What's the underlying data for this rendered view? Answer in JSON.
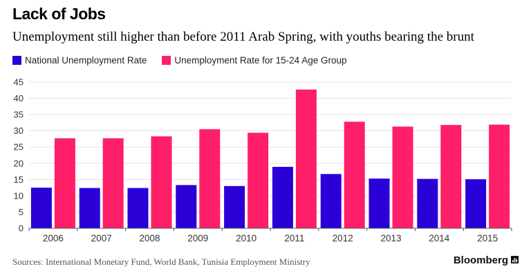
{
  "header": {
    "title": "Lack of Jobs",
    "subtitle": "Unemployment still higher than before 2011 Arab Spring, with youths bearing the brunt"
  },
  "footer": {
    "source": "Sources: International Monetary Fund, World Bank, Tunisia Employment Ministry",
    "brand": "Bloomberg",
    "brand_icon": "bar-chart-icon"
  },
  "colors": {
    "national": "#2a00d6",
    "youth": "#ff1f68",
    "grid": "#e3e3e3",
    "axis": "#555555"
  },
  "chart_data": {
    "type": "bar",
    "title": "Lack of Jobs",
    "subtitle": "Unemployment still higher than before 2011 Arab Spring, with youths bearing the brunt",
    "xlabel": "",
    "ylabel": "",
    "categories": [
      "2006",
      "2007",
      "2008",
      "2009",
      "2010",
      "2011",
      "2012",
      "2013",
      "2014",
      "2015"
    ],
    "series": [
      {
        "name": "National Unemployment Rate",
        "color": "#2a00d6",
        "values": [
          12.5,
          12.4,
          12.4,
          13.3,
          13.0,
          18.9,
          16.7,
          15.3,
          15.2,
          15.1
        ]
      },
      {
        "name": "Unemployment Rate for 15-24 Age Group",
        "color": "#ff1f68",
        "values": [
          27.7,
          27.7,
          28.3,
          30.5,
          29.4,
          42.7,
          32.8,
          31.3,
          31.8,
          31.9
        ]
      }
    ],
    "ylim": [
      0,
      45
    ],
    "yticks": [
      0,
      5,
      10,
      15,
      20,
      25,
      30,
      35,
      40,
      45
    ],
    "grid": true,
    "legend": "top-left"
  }
}
